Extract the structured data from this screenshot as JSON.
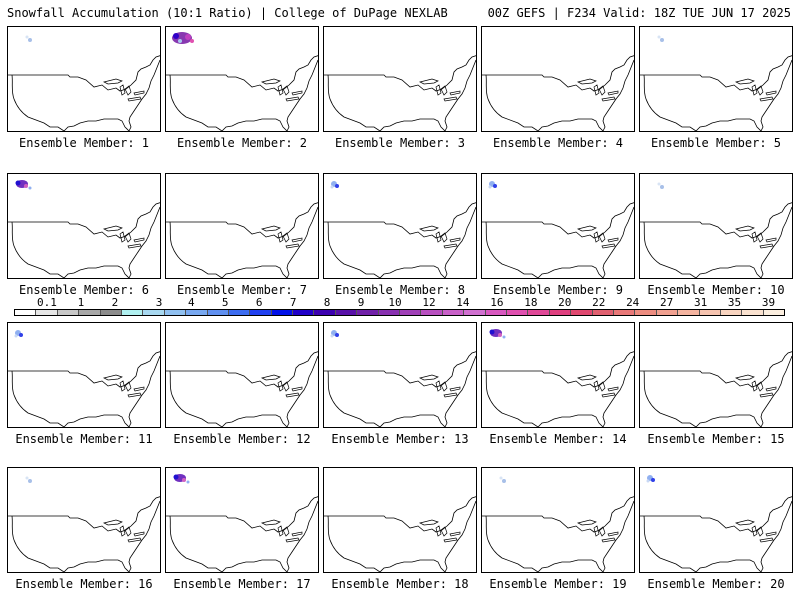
{
  "header": {
    "left_title": "Snowfall Accumulation (10:1 Ratio) | College of DuPage NEXLAB",
    "right_title": "00Z GEFS | F234 Valid: 18Z TUE JUN 17 2025"
  },
  "map_region": "Continental United States",
  "members": [
    {
      "label": "Ensemble Member: 1",
      "snow": "trace"
    },
    {
      "label": "Ensemble Member: 2",
      "snow": "heavy"
    },
    {
      "label": "Ensemble Member: 3",
      "snow": "none"
    },
    {
      "label": "Ensemble Member: 4",
      "snow": "none"
    },
    {
      "label": "Ensemble Member: 5",
      "snow": "trace"
    },
    {
      "label": "Ensemble Member: 6",
      "snow": "moderate"
    },
    {
      "label": "Ensemble Member: 7",
      "snow": "none"
    },
    {
      "label": "Ensemble Member: 8",
      "snow": "light"
    },
    {
      "label": "Ensemble Member: 9",
      "snow": "light"
    },
    {
      "label": "Ensemble Member: 10",
      "snow": "trace"
    },
    {
      "label": "Ensemble Member: 11",
      "snow": "light"
    },
    {
      "label": "Ensemble Member: 12",
      "snow": "none"
    },
    {
      "label": "Ensemble Member: 13",
      "snow": "light"
    },
    {
      "label": "Ensemble Member: 14",
      "snow": "moderate"
    },
    {
      "label": "Ensemble Member: 15",
      "snow": "none"
    },
    {
      "label": "Ensemble Member: 16",
      "snow": "trace"
    },
    {
      "label": "Ensemble Member: 17",
      "snow": "moderate"
    },
    {
      "label": "Ensemble Member: 18",
      "snow": "none"
    },
    {
      "label": "Ensemble Member: 19",
      "snow": "trace"
    },
    {
      "label": "Ensemble Member: 20",
      "snow": "light"
    }
  ],
  "color_scale": {
    "labels": [
      "0.1",
      "1",
      "2",
      "3",
      "4",
      "5",
      "6",
      "7",
      "8",
      "9",
      "10",
      "12",
      "14",
      "16",
      "18",
      "20",
      "22",
      "24",
      "27",
      "31",
      "35",
      "39"
    ],
    "colors": [
      "#ffffff",
      "#e6e6e6",
      "#c8c8c8",
      "#a8a8a8",
      "#8c8c8c",
      "#b0f0f0",
      "#a8d8f0",
      "#90c0f0",
      "#78a8f0",
      "#6090f0",
      "#3c6cf0",
      "#2040f0",
      "#0010e8",
      "#2000c8",
      "#3c00b0",
      "#5810a8",
      "#7020a8",
      "#8830b0",
      "#a040b8",
      "#b850c0",
      "#c860c8",
      "#d070d0",
      "#d858c0",
      "#e050b0",
      "#e04898",
      "#e04080",
      "#e04870",
      "#e06070",
      "#e87878",
      "#ec8c80",
      "#f0a090",
      "#f4b4a0",
      "#f6c4b0",
      "#f8d4c0",
      "#fae2d0",
      "#fcefe0"
    ]
  }
}
